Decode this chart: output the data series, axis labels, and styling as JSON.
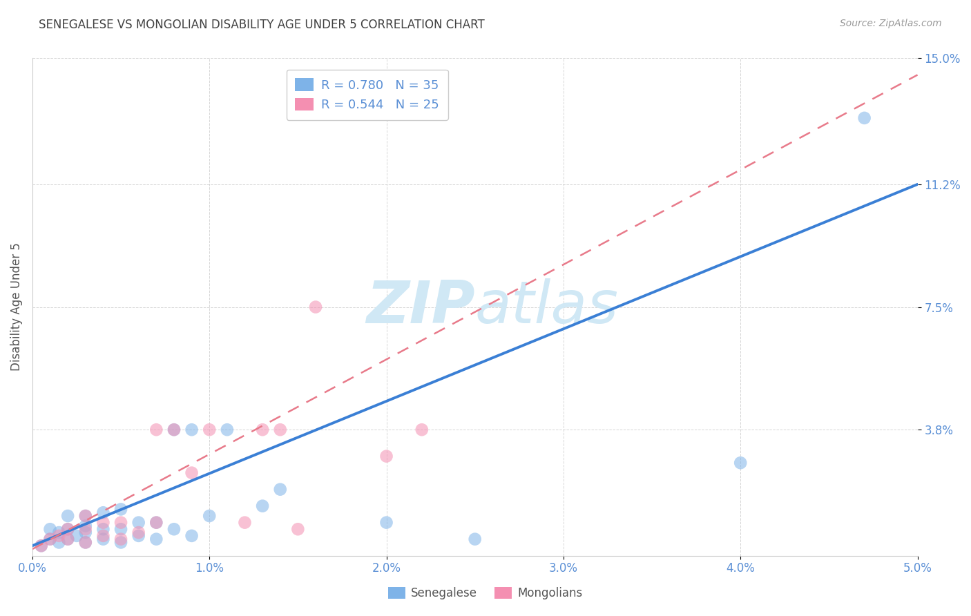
{
  "title": "SENEGALESE VS MONGOLIAN DISABILITY AGE UNDER 5 CORRELATION CHART",
  "source": "Source: ZipAtlas.com",
  "ylabel": "Disability Age Under 5",
  "xlabel_ticks": [
    "0.0%",
    "1.0%",
    "2.0%",
    "3.0%",
    "4.0%",
    "5.0%"
  ],
  "ylabel_ticks": [
    "3.8%",
    "7.5%",
    "11.2%",
    "15.0%"
  ],
  "xlim": [
    0.0,
    0.05
  ],
  "ylim": [
    0.0,
    0.15
  ],
  "ytick_vals": [
    0.038,
    0.075,
    0.112,
    0.15
  ],
  "xtick_vals": [
    0.0,
    0.01,
    0.02,
    0.03,
    0.04,
    0.05
  ],
  "senegalese_x": [
    0.0005,
    0.001,
    0.001,
    0.0015,
    0.0015,
    0.002,
    0.002,
    0.002,
    0.0025,
    0.003,
    0.003,
    0.003,
    0.003,
    0.004,
    0.004,
    0.004,
    0.005,
    0.005,
    0.005,
    0.006,
    0.006,
    0.007,
    0.007,
    0.008,
    0.008,
    0.009,
    0.009,
    0.01,
    0.011,
    0.013,
    0.014,
    0.02,
    0.025,
    0.04,
    0.047
  ],
  "senegalese_y": [
    0.003,
    0.005,
    0.008,
    0.004,
    0.007,
    0.005,
    0.008,
    0.012,
    0.006,
    0.004,
    0.007,
    0.009,
    0.012,
    0.005,
    0.008,
    0.013,
    0.004,
    0.008,
    0.014,
    0.006,
    0.01,
    0.005,
    0.01,
    0.008,
    0.038,
    0.006,
    0.038,
    0.012,
    0.038,
    0.015,
    0.02,
    0.01,
    0.005,
    0.028,
    0.132
  ],
  "mongolian_x": [
    0.0005,
    0.001,
    0.0015,
    0.002,
    0.002,
    0.003,
    0.003,
    0.003,
    0.004,
    0.004,
    0.005,
    0.005,
    0.006,
    0.007,
    0.007,
    0.008,
    0.009,
    0.01,
    0.012,
    0.013,
    0.014,
    0.015,
    0.016,
    0.02,
    0.022
  ],
  "mongolian_y": [
    0.003,
    0.005,
    0.006,
    0.005,
    0.008,
    0.004,
    0.008,
    0.012,
    0.006,
    0.01,
    0.005,
    0.01,
    0.007,
    0.038,
    0.01,
    0.038,
    0.025,
    0.038,
    0.01,
    0.038,
    0.038,
    0.008,
    0.075,
    0.03,
    0.038
  ],
  "blue_line_x": [
    0.0,
    0.05
  ],
  "blue_line_y": [
    0.003,
    0.112
  ],
  "pink_line_x": [
    0.0,
    0.05
  ],
  "pink_line_y": [
    0.002,
    0.145
  ],
  "scatter_color_blue": "#7eb3e8",
  "scatter_color_pink": "#f48fb1",
  "line_color_blue": "#3a7fd5",
  "line_color_pink": "#e87a8a",
  "grid_color": "#cccccc",
  "title_color": "#404040",
  "tick_label_color": "#5a8fd5",
  "ylabel_color": "#555555",
  "watermark_zip": "ZIP",
  "watermark_atlas": "atlas",
  "watermark_color": "#d0e8f5",
  "background_color": "#ffffff"
}
